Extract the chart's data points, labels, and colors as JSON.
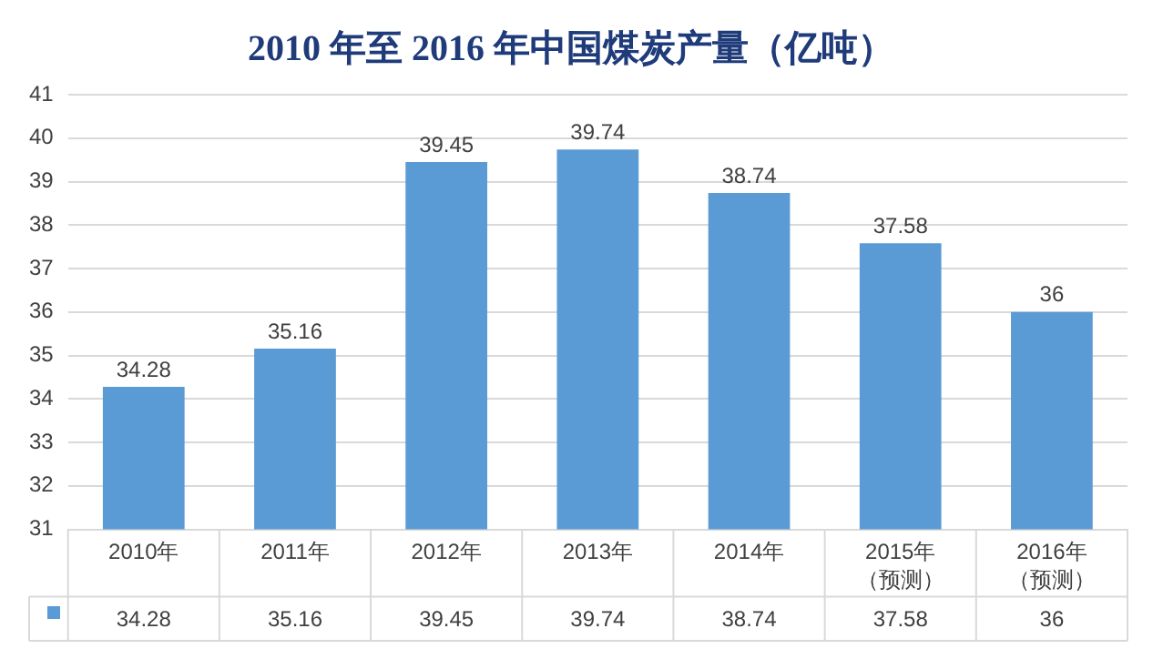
{
  "chart_data": {
    "type": "bar",
    "title": "2010 年至 2016 年中国煤炭产量（亿吨）",
    "categories": [
      "2010年",
      "2011年",
      "2012年",
      "2013年",
      "2014年",
      "2015年（预测）",
      "2016年（预测）"
    ],
    "series": [
      {
        "color": "#5b9bd5",
        "values": [
          34.28,
          35.16,
          39.45,
          39.74,
          38.74,
          37.58,
          36
        ],
        "value_labels": [
          "34.28",
          "35.16",
          "39.45",
          "39.74",
          "38.74",
          "37.58",
          "36"
        ]
      }
    ],
    "ylim": [
      31,
      41
    ],
    "yticks": [
      31,
      32,
      33,
      34,
      35,
      36,
      37,
      38,
      39,
      40,
      41
    ],
    "grid": "y",
    "data_labels": true,
    "legend": false
  }
}
